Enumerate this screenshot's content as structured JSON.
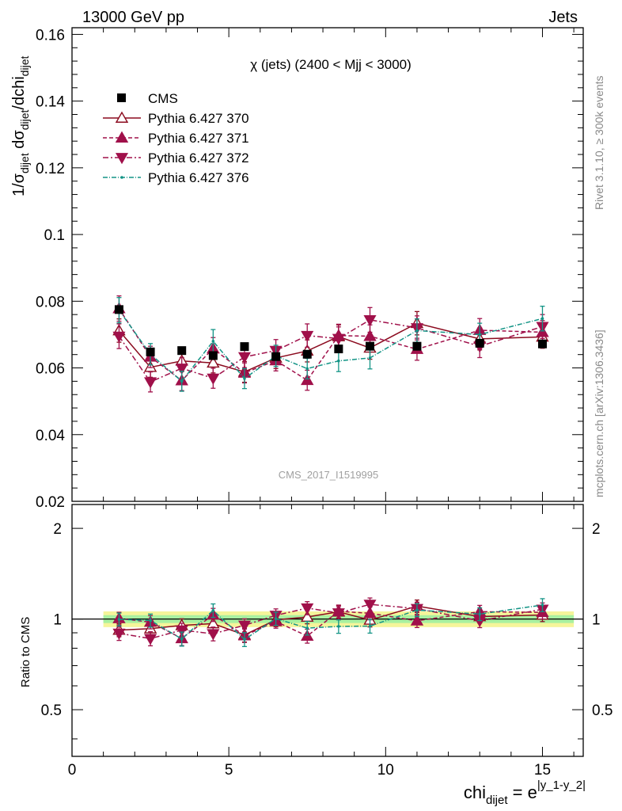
{
  "header": {
    "left": "13000 GeV pp",
    "right": "Jets"
  },
  "side_text": {
    "rivet": "Rivet 3.1.10, ≥ 300k events",
    "mcplots": "mcplots.cern.ch [arXiv:1306.3436]"
  },
  "chart_data": {
    "type": "scatter",
    "title": "χ (jets) (2400 < Mjj < 3000)",
    "watermark": "CMS_2017_I1519995",
    "xlabel": {
      "main": "chi",
      "sub": "dijet",
      "eq": " = e",
      "sup": "|y_1-y_2|"
    },
    "ylabel": {
      "a": "1/σ",
      "a_sub": "dijet",
      "b": " dσ",
      "b_sub": "dijet",
      "c": "/dchi",
      "c_sub": "dijet"
    },
    "ratio_ylabel": "Ratio to CMS",
    "xlim": [
      0,
      16.3
    ],
    "ylim": [
      0.02,
      0.162
    ],
    "ratio_ylim": [
      0.35,
      2.4
    ],
    "xticks": [
      0,
      5,
      10,
      15
    ],
    "xtick_labels": [
      "0",
      "5",
      "10",
      "15"
    ],
    "yticks": [
      0.02,
      0.04,
      0.06,
      0.08,
      0.1,
      0.12,
      0.14,
      0.16
    ],
    "ytick_labels": [
      "0.02",
      "0.04",
      "0.06",
      "0.08",
      "0.1",
      "0.12",
      "0.14",
      "0.16"
    ],
    "ratio_ticks": [
      0.5,
      1,
      2
    ],
    "ratio_tick_labels": [
      "0.5",
      "1",
      "2"
    ],
    "x": [
      1.5,
      2.5,
      3.5,
      4.5,
      5.5,
      6.5,
      7.5,
      8.5,
      9.5,
      11,
      13,
      15
    ],
    "x_edges": [
      1,
      2,
      3,
      4,
      5,
      6,
      7,
      8,
      9,
      10,
      12,
      14,
      16
    ],
    "data": {
      "name": "CMS",
      "color": "#000000",
      "values": [
        0.0775,
        0.0648,
        0.0652,
        0.0637,
        0.0664,
        0.0634,
        0.0641,
        0.0657,
        0.0665,
        0.0665,
        0.0674,
        0.0672
      ],
      "band_inner": 0.03,
      "band_outer": 0.06
    },
    "series": [
      {
        "name": "Pythia 6.427 370",
        "color": "#8b0a1e",
        "marker": "triangle-up-open",
        "dash": "",
        "values": [
          0.0712,
          0.0602,
          0.0621,
          0.0615,
          0.0588,
          0.063,
          0.0651,
          0.0694,
          0.066,
          0.0734,
          0.0687,
          0.0693
        ],
        "errors": [
          0.0035,
          0.003,
          0.0032,
          0.003,
          0.0031,
          0.0032,
          0.0033,
          0.0035,
          0.0034,
          0.0035,
          0.0033,
          0.0034
        ]
      },
      {
        "name": "Pythia 6.427 371",
        "color": "#a0104a",
        "marker": "triangle-up",
        "dash": "5,3",
        "values": [
          0.0778,
          0.0633,
          0.0562,
          0.0658,
          0.0585,
          0.0622,
          0.0563,
          0.0697,
          0.0695,
          0.0656,
          0.0713,
          0.0707
        ],
        "errors": [
          0.0038,
          0.0032,
          0.003,
          0.0033,
          0.003,
          0.0031,
          0.003,
          0.0034,
          0.0034,
          0.0033,
          0.0035,
          0.0035
        ]
      },
      {
        "name": "Pythia 6.427 372",
        "color": "#a0104a",
        "marker": "triangle-down",
        "dash": "7,3,2,3",
        "values": [
          0.0695,
          0.0558,
          0.0599,
          0.0569,
          0.0633,
          0.0652,
          0.0697,
          0.0688,
          0.0744,
          0.072,
          0.0665,
          0.0724
        ],
        "errors": [
          0.0037,
          0.003,
          0.0032,
          0.003,
          0.0032,
          0.0033,
          0.0035,
          0.0035,
          0.0037,
          0.0036,
          0.0034,
          0.0036
        ]
      },
      {
        "name": "Pythia 6.427 376",
        "color": "#139486",
        "marker": "dot",
        "dash": "6,2,1,2",
        "values": [
          0.0773,
          0.0641,
          0.056,
          0.068,
          0.0568,
          0.0636,
          0.0598,
          0.0621,
          0.063,
          0.0712,
          0.07,
          0.0748
        ],
        "errors": [
          0.0038,
          0.0032,
          0.003,
          0.0035,
          0.003,
          0.0032,
          0.0031,
          0.0032,
          0.0033,
          0.0035,
          0.0034,
          0.0037
        ]
      }
    ]
  }
}
